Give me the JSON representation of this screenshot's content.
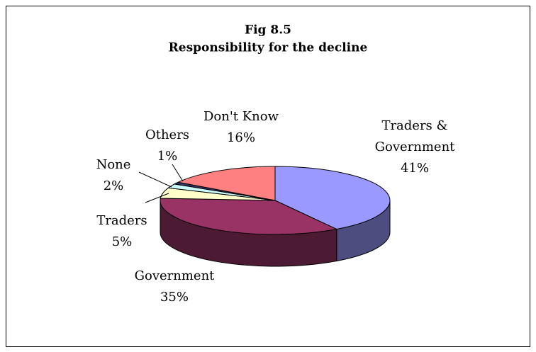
{
  "chart_data": {
    "type": "pie",
    "title": "Fig 8.5",
    "subtitle": "Responsibility for the decline",
    "categories": [
      "Traders & Government",
      "Government",
      "Traders",
      "None",
      "Others",
      "Don't Know"
    ],
    "values": [
      41,
      35,
      5,
      2,
      1,
      16
    ],
    "value_labels": [
      "41%",
      "35%",
      "5%",
      "2%",
      "1%",
      "16%"
    ],
    "colors": [
      "#9999ff",
      "#993366",
      "#ffffcc",
      "#ccffff",
      "#333366",
      "#ff8080"
    ]
  }
}
